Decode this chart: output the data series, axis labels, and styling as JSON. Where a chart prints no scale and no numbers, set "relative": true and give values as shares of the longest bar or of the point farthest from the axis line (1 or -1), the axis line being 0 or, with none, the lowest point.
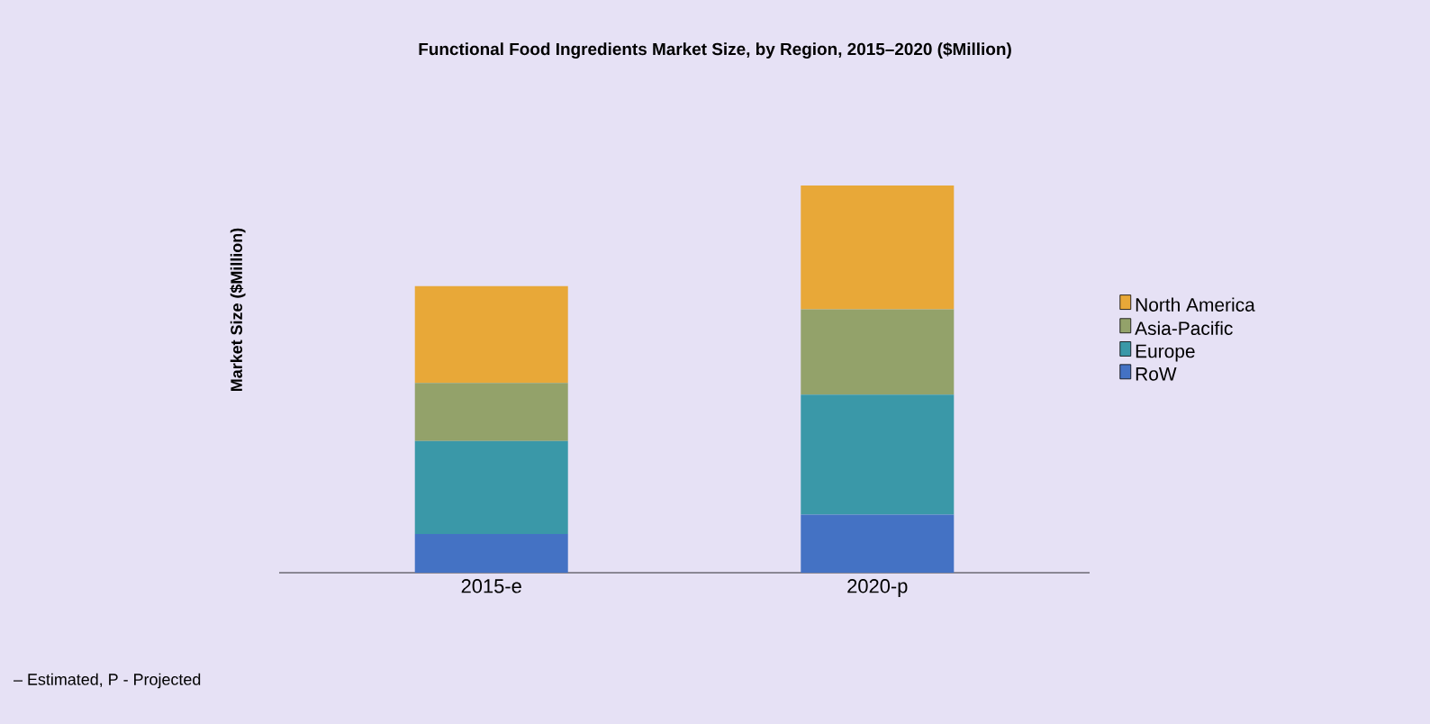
{
  "chart_data": {
    "type": "bar",
    "title": "Functional Food Ingredients Market Size, by Region, 2015–2020 ($Million)",
    "ylabel": "Market Size ($Million)",
    "categories": [
      "2015-e",
      "2020-p"
    ],
    "stacked": true,
    "relative": true,
    "legend": "right",
    "series": [
      {
        "name": "RoW",
        "color": "#4472c4",
        "values": [
          0.1,
          0.15
        ]
      },
      {
        "name": "Europe",
        "color": "#3a98a8",
        "values": [
          0.24,
          0.31
        ]
      },
      {
        "name": "Asia-Pacific",
        "color": "#93a26a",
        "values": [
          0.15,
          0.22
        ]
      },
      {
        "name": "North America",
        "color": "#e8a838",
        "values": [
          0.25,
          0.32
        ]
      }
    ],
    "annotations": [
      "– Estimated, P - Projected"
    ]
  }
}
